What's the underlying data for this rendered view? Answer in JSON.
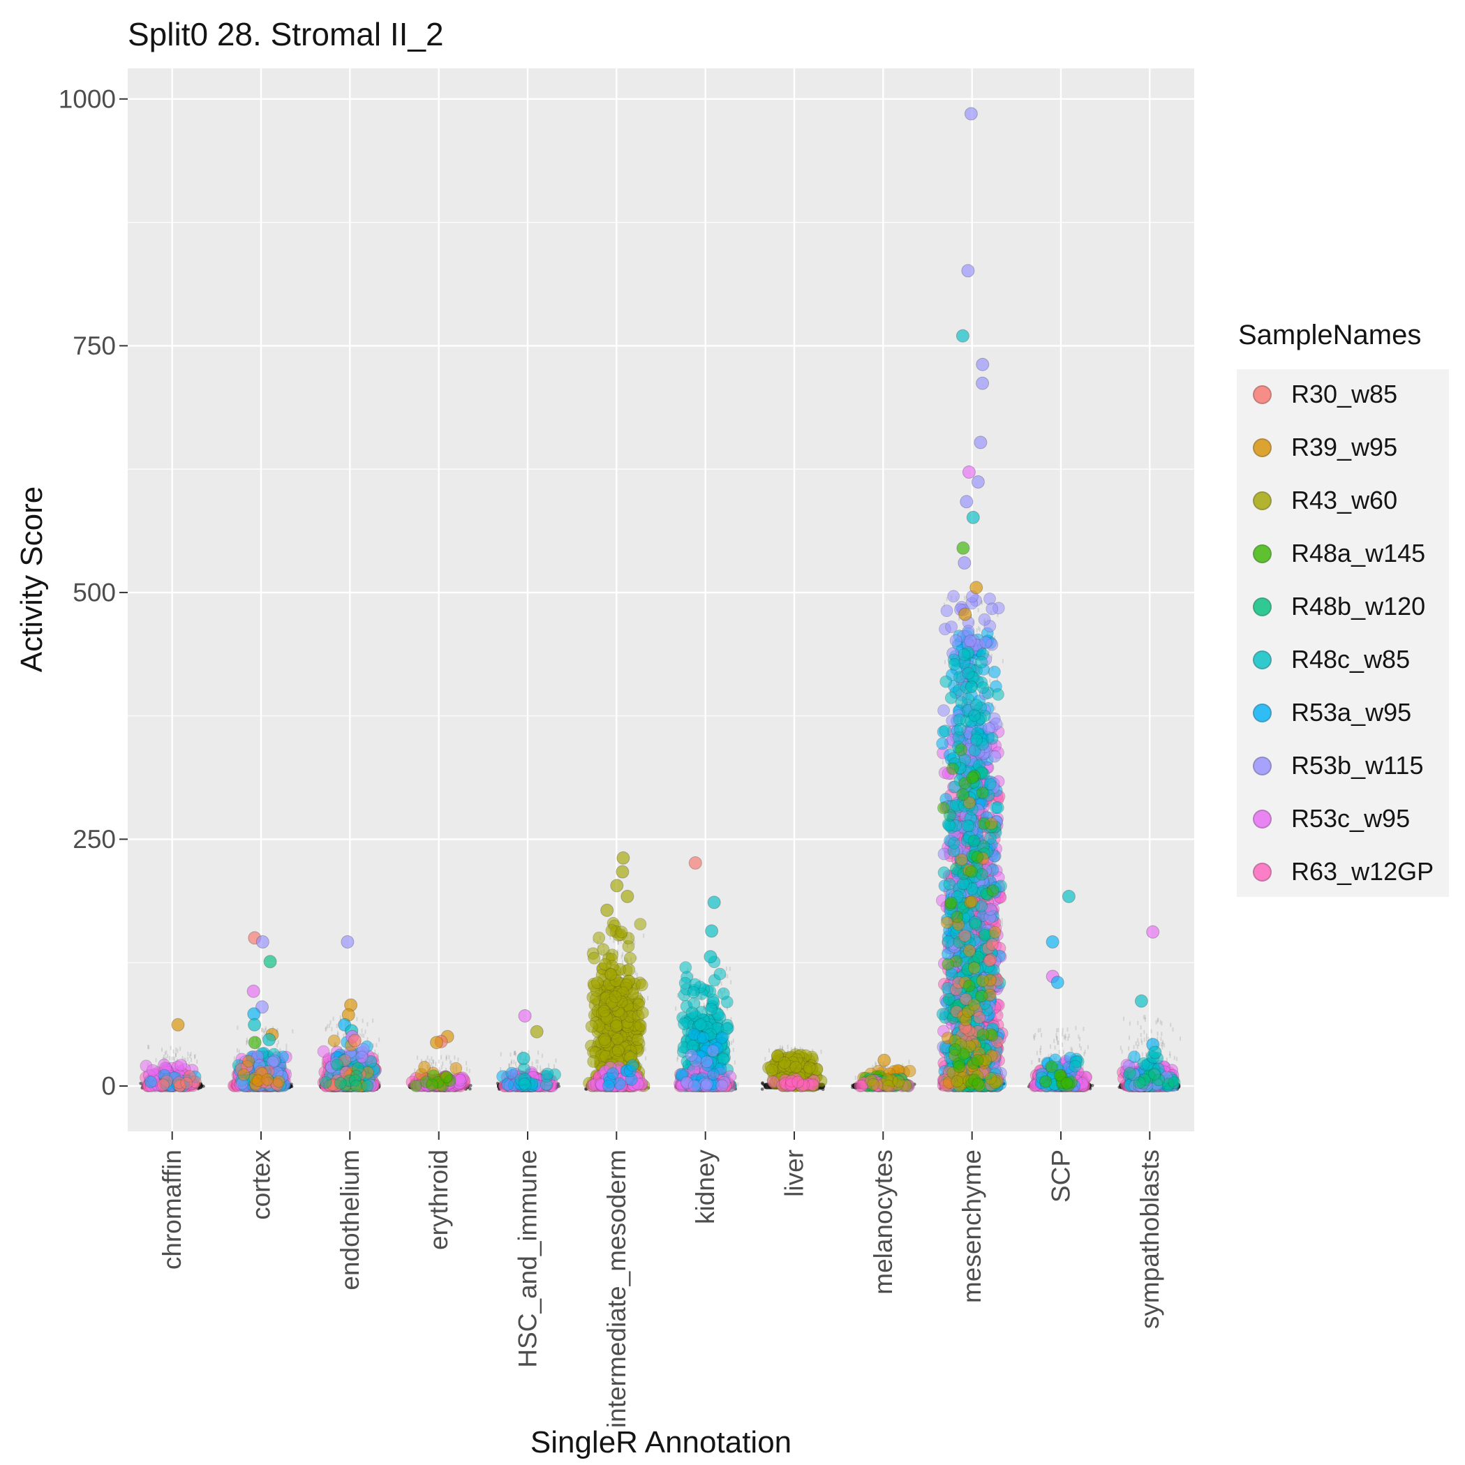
{
  "title": "Split0 28. Stromal II_2",
  "axes": {
    "x_title": "SingleR Annotation",
    "y_title": "Activity Score"
  },
  "legend": {
    "title": "SampleNames"
  },
  "samples": [
    {
      "id": "R30_w85",
      "label": "R30_w85",
      "color": "#F8766D"
    },
    {
      "id": "R39_w95",
      "label": "R39_w95",
      "color": "#D89000"
    },
    {
      "id": "R43_w60",
      "label": "R43_w60",
      "color": "#A3A500"
    },
    {
      "id": "R48a_w145",
      "label": "R48a_w145",
      "color": "#39B600"
    },
    {
      "id": "R48b_w120",
      "label": "R48b_w120",
      "color": "#00BF7D"
    },
    {
      "id": "R48c_w85",
      "label": "R48c_w85",
      "color": "#00BFC4"
    },
    {
      "id": "R53a_w95",
      "label": "R53a_w95",
      "color": "#00B0F6"
    },
    {
      "id": "R53b_w115",
      "label": "R53b_w115",
      "color": "#9590FF"
    },
    {
      "id": "R53c_w95",
      "label": "R53c_w95",
      "color": "#E76BF3"
    },
    {
      "id": "R63_w12GP",
      "label": "R63_w12GP",
      "color": "#FF62BC"
    }
  ],
  "chart_data": {
    "type": "scatter",
    "variant": "jitter-strip",
    "title": "Split0 28. Stromal II_2",
    "xlabel": "SingleR Annotation",
    "ylabel": "Activity Score",
    "categories": [
      "chromaffin",
      "cortex",
      "endothelium",
      "erythroid",
      "HSC_and_immune",
      "intermediate_mesoderm",
      "kidney",
      "liver",
      "melanocytes",
      "mesenchyme",
      "SCP",
      "sympathoblasts"
    ],
    "yticks": [
      0,
      250,
      500,
      750,
      1000
    ],
    "yticks_minor": [
      125,
      375,
      625,
      875
    ],
    "ylim": [
      -46,
      1031
    ],
    "panel_bg": "#EBEBEB",
    "grid_color": "#FFFFFF",
    "tick_label_color": "#4D4D4D",
    "baseline_band": {
      "y": 0,
      "color": "#141414",
      "note": "dense mass of near-zero scores in every category"
    },
    "clusters": [
      {
        "cat": "chromaffin",
        "sample": "R63_w12GP",
        "n": 130,
        "min": 0,
        "max": 14,
        "decay": 2.5
      },
      {
        "cat": "chromaffin",
        "sample": "R53c_w95",
        "n": 50,
        "min": 0,
        "max": 22,
        "decay": 2.2
      },
      {
        "cat": "chromaffin",
        "sample": "R53a_w95",
        "n": 10,
        "min": 0,
        "max": 12,
        "decay": 2
      },
      {
        "cat": "chromaffin",
        "sample": "R30_w85",
        "n": 8,
        "min": 0,
        "max": 10,
        "decay": 2
      },
      {
        "cat": "cortex",
        "sample": "R63_w12GP",
        "n": 200,
        "min": 0,
        "max": 22,
        "decay": 2.4
      },
      {
        "cat": "cortex",
        "sample": "R53c_w95",
        "n": 90,
        "min": 0,
        "max": 30,
        "decay": 2.2
      },
      {
        "cat": "cortex",
        "sample": "R53a_w95",
        "n": 25,
        "min": 0,
        "max": 35,
        "decay": 2
      },
      {
        "cat": "cortex",
        "sample": "R48c_w85",
        "n": 20,
        "min": 0,
        "max": 35,
        "decay": 2
      },
      {
        "cat": "cortex",
        "sample": "R53b_w115",
        "n": 15,
        "min": 0,
        "max": 30,
        "decay": 2
      },
      {
        "cat": "cortex",
        "sample": "R30_w85",
        "n": 10,
        "min": 0,
        "max": 20,
        "decay": 2
      },
      {
        "cat": "cortex",
        "sample": "R39_w95",
        "n": 8,
        "min": 0,
        "max": 25,
        "decay": 2
      },
      {
        "cat": "endothelium",
        "sample": "R63_w12GP",
        "n": 260,
        "min": 0,
        "max": 28,
        "decay": 2.4
      },
      {
        "cat": "endothelium",
        "sample": "R53c_w95",
        "n": 100,
        "min": 0,
        "max": 35,
        "decay": 2.2
      },
      {
        "cat": "endothelium",
        "sample": "R53a_w95",
        "n": 35,
        "min": 0,
        "max": 45,
        "decay": 2
      },
      {
        "cat": "endothelium",
        "sample": "R48c_w85",
        "n": 25,
        "min": 0,
        "max": 40,
        "decay": 2
      },
      {
        "cat": "endothelium",
        "sample": "R53b_w115",
        "n": 20,
        "min": 0,
        "max": 40,
        "decay": 2
      },
      {
        "cat": "endothelium",
        "sample": "R39_w95",
        "n": 15,
        "min": 0,
        "max": 55,
        "decay": 1.8
      },
      {
        "cat": "endothelium",
        "sample": "R30_w85",
        "n": 10,
        "min": 0,
        "max": 30,
        "decay": 2
      },
      {
        "cat": "endothelium",
        "sample": "R48b_w120",
        "n": 10,
        "min": 0,
        "max": 30,
        "decay": 2
      },
      {
        "cat": "erythroid",
        "sample": "R63_w12GP",
        "n": 110,
        "min": 0,
        "max": 8,
        "decay": 2.5
      },
      {
        "cat": "erythroid",
        "sample": "R53c_w95",
        "n": 35,
        "min": 0,
        "max": 10,
        "decay": 2.2
      },
      {
        "cat": "erythroid",
        "sample": "R39_w95",
        "n": 10,
        "min": 0,
        "max": 20,
        "decay": 1.8
      },
      {
        "cat": "erythroid",
        "sample": "R48a_w145",
        "n": 8,
        "min": 0,
        "max": 12,
        "decay": 2
      },
      {
        "cat": "HSC_and_immune",
        "sample": "R63_w12GP",
        "n": 140,
        "min": 0,
        "max": 10,
        "decay": 2.5
      },
      {
        "cat": "HSC_and_immune",
        "sample": "R53c_w95",
        "n": 45,
        "min": 0,
        "max": 14,
        "decay": 2.2
      },
      {
        "cat": "HSC_and_immune",
        "sample": "R53a_w95",
        "n": 12,
        "min": 0,
        "max": 15,
        "decay": 2
      },
      {
        "cat": "HSC_and_immune",
        "sample": "R48c_w85",
        "n": 10,
        "min": 0,
        "max": 18,
        "decay": 2
      },
      {
        "cat": "intermediate_mesoderm",
        "sample": "R43_w60",
        "n": 420,
        "min": 0,
        "max": 105,
        "decay": 1.6
      },
      {
        "cat": "intermediate_mesoderm",
        "sample": "R43_w60",
        "n": 90,
        "min": 60,
        "max": 165,
        "decay": 1.3
      },
      {
        "cat": "intermediate_mesoderm",
        "sample": "R63_w12GP",
        "n": 90,
        "min": 0,
        "max": 12,
        "decay": 2.5
      },
      {
        "cat": "intermediate_mesoderm",
        "sample": "R53c_w95",
        "n": 35,
        "min": 0,
        "max": 20,
        "decay": 2.2
      },
      {
        "cat": "intermediate_mesoderm",
        "sample": "R53a_w95",
        "n": 10,
        "min": 0,
        "max": 25,
        "decay": 2
      },
      {
        "cat": "kidney",
        "sample": "R48c_w85",
        "n": 280,
        "min": 0,
        "max": 70,
        "decay": 1.8
      },
      {
        "cat": "kidney",
        "sample": "R48c_w85",
        "n": 50,
        "min": 40,
        "max": 130,
        "decay": 1.4
      },
      {
        "cat": "kidney",
        "sample": "R63_w12GP",
        "n": 90,
        "min": 0,
        "max": 12,
        "decay": 2.5
      },
      {
        "cat": "kidney",
        "sample": "R53c_w95",
        "n": 35,
        "min": 0,
        "max": 18,
        "decay": 2.2
      },
      {
        "cat": "kidney",
        "sample": "R53a_w95",
        "n": 25,
        "min": 0,
        "max": 55,
        "decay": 1.8
      },
      {
        "cat": "kidney",
        "sample": "R53b_w115",
        "n": 12,
        "min": 0,
        "max": 45,
        "decay": 1.8
      },
      {
        "cat": "liver",
        "sample": "R43_w60",
        "n": 170,
        "min": 0,
        "max": 32,
        "decay": 1.6
      },
      {
        "cat": "liver",
        "sample": "R63_w12GP",
        "n": 20,
        "min": 0,
        "max": 8,
        "decay": 2.5
      },
      {
        "cat": "melanocytes",
        "sample": "R39_w95",
        "n": 35,
        "min": 0,
        "max": 16,
        "decay": 2
      },
      {
        "cat": "melanocytes",
        "sample": "R48a_w145",
        "n": 25,
        "min": 0,
        "max": 10,
        "decay": 2.2
      },
      {
        "cat": "melanocytes",
        "sample": "R48b_w120",
        "n": 25,
        "min": 0,
        "max": 8,
        "decay": 2.2
      },
      {
        "cat": "melanocytes",
        "sample": "R63_w12GP",
        "n": 20,
        "min": 0,
        "max": 6,
        "decay": 2.5
      },
      {
        "cat": "melanocytes",
        "sample": "R43_w60",
        "n": 10,
        "min": 0,
        "max": 8,
        "decay": 2
      },
      {
        "cat": "mesenchyme",
        "sample": "R53c_w95",
        "n": 650,
        "min": 0,
        "max": 360,
        "decay": 1.9,
        "w": 44
      },
      {
        "cat": "mesenchyme",
        "sample": "R63_w12GP",
        "n": 550,
        "min": 0,
        "max": 300,
        "decay": 2.1,
        "w": 44
      },
      {
        "cat": "mesenchyme",
        "sample": "R53a_w95",
        "n": 330,
        "min": 0,
        "max": 460,
        "decay": 1.9,
        "w": 44
      },
      {
        "cat": "mesenchyme",
        "sample": "R53b_w115",
        "n": 280,
        "min": 0,
        "max": 500,
        "decay": 1.9,
        "w": 44
      },
      {
        "cat": "mesenchyme",
        "sample": "R48c_w85",
        "n": 300,
        "min": 0,
        "max": 440,
        "decay": 1.9,
        "w": 44
      },
      {
        "cat": "mesenchyme",
        "sample": "R48b_w120",
        "n": 70,
        "min": 0,
        "max": 320,
        "decay": 2,
        "w": 44
      },
      {
        "cat": "mesenchyme",
        "sample": "R30_w85",
        "n": 40,
        "min": 0,
        "max": 160,
        "decay": 2,
        "w": 44
      },
      {
        "cat": "mesenchyme",
        "sample": "R39_w95",
        "n": 25,
        "min": 0,
        "max": 300,
        "decay": 1.6,
        "w": 44
      },
      {
        "cat": "mesenchyme",
        "sample": "R43_w60",
        "n": 25,
        "min": 0,
        "max": 120,
        "decay": 2,
        "w": 44
      },
      {
        "cat": "mesenchyme",
        "sample": "R48a_w145",
        "n": 30,
        "min": 0,
        "max": 350,
        "decay": 1.8,
        "w": 44
      },
      {
        "cat": "SCP",
        "sample": "R63_w12GP",
        "n": 170,
        "min": 0,
        "max": 16,
        "decay": 2.4
      },
      {
        "cat": "SCP",
        "sample": "R53c_w95",
        "n": 60,
        "min": 0,
        "max": 26,
        "decay": 2.2
      },
      {
        "cat": "SCP",
        "sample": "R53a_w95",
        "n": 25,
        "min": 0,
        "max": 30,
        "decay": 2
      },
      {
        "cat": "SCP",
        "sample": "R48c_w85",
        "n": 15,
        "min": 0,
        "max": 25,
        "decay": 2
      },
      {
        "cat": "SCP",
        "sample": "R48a_w145",
        "n": 10,
        "min": 0,
        "max": 20,
        "decay": 2
      },
      {
        "cat": "sympathoblasts",
        "sample": "R63_w12GP",
        "n": 220,
        "min": 0,
        "max": 16,
        "decay": 2.4
      },
      {
        "cat": "sympathoblasts",
        "sample": "R53c_w95",
        "n": 70,
        "min": 0,
        "max": 22,
        "decay": 2.2
      },
      {
        "cat": "sympathoblasts",
        "sample": "R53a_w95",
        "n": 35,
        "min": 0,
        "max": 30,
        "decay": 2
      },
      {
        "cat": "sympathoblasts",
        "sample": "R48c_w85",
        "n": 25,
        "min": 0,
        "max": 30,
        "decay": 2
      },
      {
        "cat": "sympathoblasts",
        "sample": "R53b_w115",
        "n": 12,
        "min": 0,
        "max": 25,
        "decay": 2
      },
      {
        "cat": "sympathoblasts",
        "sample": "R48b_w120",
        "n": 10,
        "min": 0,
        "max": 20,
        "decay": 2
      }
    ],
    "outliers": [
      {
        "cat": "chromaffin",
        "sample": "R39_w95",
        "y": 62
      },
      {
        "cat": "cortex",
        "sample": "R30_w85",
        "y": 150
      },
      {
        "cat": "cortex",
        "sample": "R53b_w115",
        "y": 146
      },
      {
        "cat": "cortex",
        "sample": "R48b_w120",
        "y": 126
      },
      {
        "cat": "cortex",
        "sample": "R53c_w95",
        "y": 96
      },
      {
        "cat": "cortex",
        "sample": "R53b_w115",
        "y": 80
      },
      {
        "cat": "cortex",
        "sample": "R53a_w95",
        "y": 73
      },
      {
        "cat": "cortex",
        "sample": "R48c_w85",
        "y": 62
      },
      {
        "cat": "cortex",
        "sample": "R39_w95",
        "y": 52
      },
      {
        "cat": "cortex",
        "sample": "R48c_w85",
        "y": 47
      },
      {
        "cat": "cortex",
        "sample": "R48a_w145",
        "y": 44
      },
      {
        "cat": "endothelium",
        "sample": "R53b_w115",
        "y": 146
      },
      {
        "cat": "endothelium",
        "sample": "R39_w95",
        "y": 82
      },
      {
        "cat": "endothelium",
        "sample": "R39_w95",
        "y": 72
      },
      {
        "cat": "endothelium",
        "sample": "R53a_w95",
        "y": 62
      },
      {
        "cat": "endothelium",
        "sample": "R48c_w85",
        "y": 56
      },
      {
        "cat": "endothelium",
        "sample": "R53c_w95",
        "y": 50
      },
      {
        "cat": "endothelium",
        "sample": "R30_w85",
        "y": 46
      },
      {
        "cat": "erythroid",
        "sample": "R39_w95",
        "y": 50
      },
      {
        "cat": "erythroid",
        "sample": "R30_w85",
        "y": 45
      },
      {
        "cat": "erythroid",
        "sample": "R39_w95",
        "y": 44
      },
      {
        "cat": "HSC_and_immune",
        "sample": "R53c_w95",
        "y": 71
      },
      {
        "cat": "HSC_and_immune",
        "sample": "R43_w60",
        "y": 55
      },
      {
        "cat": "HSC_and_immune",
        "sample": "R48c_w85",
        "y": 28
      },
      {
        "cat": "intermediate_mesoderm",
        "sample": "R43_w60",
        "y": 231
      },
      {
        "cat": "intermediate_mesoderm",
        "sample": "R43_w60",
        "y": 217
      },
      {
        "cat": "intermediate_mesoderm",
        "sample": "R43_w60",
        "y": 203
      },
      {
        "cat": "intermediate_mesoderm",
        "sample": "R43_w60",
        "y": 192
      },
      {
        "cat": "intermediate_mesoderm",
        "sample": "R43_w60",
        "y": 178
      },
      {
        "cat": "kidney",
        "sample": "R30_w85",
        "y": 226
      },
      {
        "cat": "kidney",
        "sample": "R48c_w85",
        "y": 186
      },
      {
        "cat": "kidney",
        "sample": "R48c_w85",
        "y": 157
      },
      {
        "cat": "kidney",
        "sample": "R48c_w85",
        "y": 131
      },
      {
        "cat": "melanocytes",
        "sample": "R39_w95",
        "y": 26
      },
      {
        "cat": "mesenchyme",
        "sample": "R53b_w115",
        "y": 985
      },
      {
        "cat": "mesenchyme",
        "sample": "R53b_w115",
        "y": 826
      },
      {
        "cat": "mesenchyme",
        "sample": "R48c_w85",
        "y": 760
      },
      {
        "cat": "mesenchyme",
        "sample": "R53b_w115",
        "y": 731
      },
      {
        "cat": "mesenchyme",
        "sample": "R53b_w115",
        "y": 712
      },
      {
        "cat": "mesenchyme",
        "sample": "R53b_w115",
        "y": 652
      },
      {
        "cat": "mesenchyme",
        "sample": "R53c_w95",
        "y": 622
      },
      {
        "cat": "mesenchyme",
        "sample": "R53b_w115",
        "y": 612
      },
      {
        "cat": "mesenchyme",
        "sample": "R53b_w115",
        "y": 592
      },
      {
        "cat": "mesenchyme",
        "sample": "R48c_w85",
        "y": 576
      },
      {
        "cat": "mesenchyme",
        "sample": "R48a_w145",
        "y": 545
      },
      {
        "cat": "mesenchyme",
        "sample": "R53b_w115",
        "y": 530
      },
      {
        "cat": "mesenchyme",
        "sample": "R39_w95",
        "y": 505
      },
      {
        "cat": "mesenchyme",
        "sample": "R39_w95",
        "y": 478
      },
      {
        "cat": "SCP",
        "sample": "R48c_w85",
        "y": 192
      },
      {
        "cat": "SCP",
        "sample": "R53a_w95",
        "y": 146
      },
      {
        "cat": "SCP",
        "sample": "R53c_w95",
        "y": 111
      },
      {
        "cat": "SCP",
        "sample": "R53a_w95",
        "y": 105
      },
      {
        "cat": "sympathoblasts",
        "sample": "R53c_w95",
        "y": 156
      },
      {
        "cat": "sympathoblasts",
        "sample": "R48c_w85",
        "y": 86
      },
      {
        "cat": "sympathoblasts",
        "sample": "R53a_w95",
        "y": 42
      },
      {
        "cat": "sympathoblasts",
        "sample": "R48c_w85",
        "y": 34
      }
    ],
    "noise": [
      {
        "cat": "chromaffin",
        "n": 150,
        "max": 40
      },
      {
        "cat": "cortex",
        "n": 200,
        "max": 60
      },
      {
        "cat": "endothelium",
        "n": 250,
        "max": 70
      },
      {
        "cat": "erythroid",
        "n": 120,
        "max": 30
      },
      {
        "cat": "HSC_and_immune",
        "n": 150,
        "max": 35
      },
      {
        "cat": "intermediate_mesoderm",
        "n": 350,
        "max": 160,
        "decay": 1.8
      },
      {
        "cat": "kidney",
        "n": 280,
        "max": 120,
        "decay": 1.8
      },
      {
        "cat": "liver",
        "n": 120,
        "max": 40
      },
      {
        "cat": "melanocytes",
        "n": 100,
        "max": 25
      },
      {
        "cat": "mesenchyme",
        "n": 700,
        "max": 500,
        "decay": 1.6
      },
      {
        "cat": "SCP",
        "n": 180,
        "max": 60
      },
      {
        "cat": "sympathoblasts",
        "n": 200,
        "max": 70
      }
    ]
  }
}
